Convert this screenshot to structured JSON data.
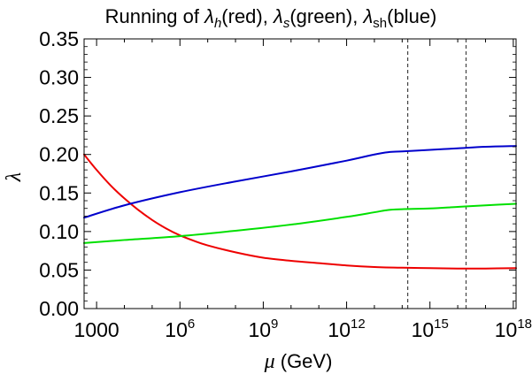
{
  "chart_data": {
    "type": "line",
    "title": {
      "prefix": "Running of ",
      "s1_sym": "λ",
      "s1_sub": "h",
      "s1_tag": "(red), ",
      "s2_sym": "λ",
      "s2_sub": "s",
      "s2_tag": "(green), ",
      "s3_sym": "λ",
      "s3_sub": "sh",
      "s3_tag": "(blue)"
    },
    "xlabel": {
      "symbol": "μ",
      "unit": " (GeV)"
    },
    "ylabel": "λ",
    "xscale": "log10",
    "xlim_log10": [
      2.55,
      18.1
    ],
    "ylim": [
      0,
      0.35
    ],
    "yticks": [
      "0.00",
      "0.05",
      "0.10",
      "0.15",
      "0.20",
      "0.25",
      "0.30",
      "0.35"
    ],
    "yticks_values": [
      0,
      0.05,
      0.1,
      0.15,
      0.2,
      0.25,
      0.3,
      0.35
    ],
    "xticks": [
      {
        "log10": 3,
        "base": "1000",
        "exp": ""
      },
      {
        "log10": 6,
        "base": "10",
        "exp": "6"
      },
      {
        "log10": 9,
        "base": "10",
        "exp": "9"
      },
      {
        "log10": 12,
        "base": "10",
        "exp": "12"
      },
      {
        "log10": 15,
        "base": "10",
        "exp": "15"
      },
      {
        "log10": 18,
        "base": "10",
        "exp": "18"
      }
    ],
    "vlines_log10": [
      14.2,
      16.3
    ],
    "series": [
      {
        "name": "lambda_h",
        "color": "#ee0000",
        "x_log10": [
          2.55,
          3,
          3.5,
          4,
          4.5,
          5,
          5.5,
          6,
          6.5,
          7,
          8,
          9,
          10,
          11,
          12,
          13,
          14,
          15,
          16,
          17,
          18.1
        ],
        "y": [
          0.2,
          0.18,
          0.16,
          0.143,
          0.128,
          0.115,
          0.104,
          0.095,
          0.088,
          0.082,
          0.073,
          0.066,
          0.062,
          0.059,
          0.056,
          0.054,
          0.053,
          0.0525,
          0.052,
          0.052,
          0.0525
        ]
      },
      {
        "name": "lambda_s",
        "color": "#00e000",
        "x_log10": [
          2.55,
          4,
          6,
          8,
          10,
          12,
          13,
          13.5,
          14,
          15,
          16,
          17,
          18.1
        ],
        "y": [
          0.085,
          0.089,
          0.094,
          0.101,
          0.109,
          0.119,
          0.125,
          0.128,
          0.129,
          0.13,
          0.132,
          0.134,
          0.136
        ]
      },
      {
        "name": "lambda_sh",
        "color": "#0000cc",
        "x_log10": [
          2.55,
          4,
          6,
          8,
          10,
          12,
          13,
          13.5,
          14,
          15,
          16,
          17,
          18.1
        ],
        "y": [
          0.118,
          0.134,
          0.151,
          0.165,
          0.178,
          0.192,
          0.2,
          0.203,
          0.204,
          0.206,
          0.208,
          0.21,
          0.211
        ]
      }
    ]
  }
}
